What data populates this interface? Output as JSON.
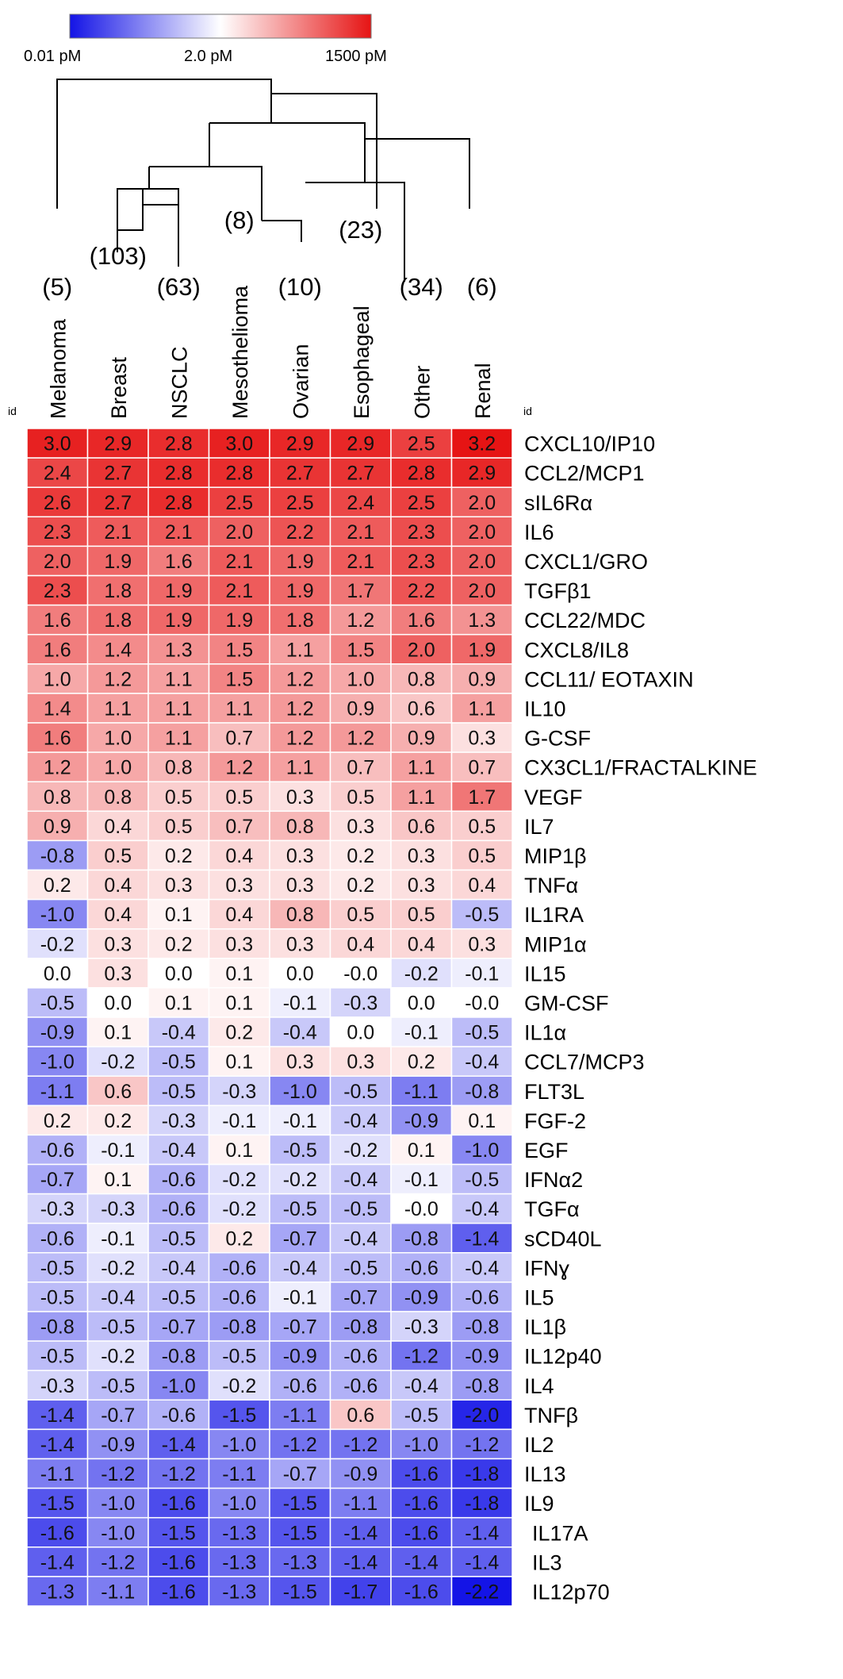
{
  "chart_data": {
    "type": "heatmap",
    "scale": {
      "min_label": "0.01 pM",
      "mid_label": "2.0 pM",
      "max_label": "1500 pM",
      "colors": [
        "#1414e6",
        "#ffffff",
        "#e61414"
      ],
      "value_range": [
        -2.2,
        3.2
      ]
    },
    "id_labels": [
      "id",
      "id"
    ],
    "columns": [
      {
        "name": "Melanoma",
        "count": "(5)"
      },
      {
        "name": "Breast",
        "count": "(103)"
      },
      {
        "name": "NSCLC",
        "count": "(63)"
      },
      {
        "name": "Mesothelioma",
        "count": "(8)"
      },
      {
        "name": "Ovarian",
        "count": "(10)"
      },
      {
        "name": "Esophageal",
        "count": "(23)"
      },
      {
        "name": "Other",
        "count": "(34)"
      },
      {
        "name": "Renal",
        "count": "(6)"
      }
    ],
    "rows": [
      {
        "name": "CXCL10/IP10",
        "values": [
          "3.0",
          "2.9",
          "2.8",
          "3.0",
          "2.9",
          "2.9",
          "2.5",
          "3.2"
        ]
      },
      {
        "name": "CCL2/MCP1",
        "values": [
          "2.4",
          "2.7",
          "2.8",
          "2.8",
          "2.7",
          "2.7",
          "2.8",
          "2.9"
        ]
      },
      {
        "name": "sIL6Rα",
        "values": [
          "2.6",
          "2.7",
          "2.8",
          "2.5",
          "2.5",
          "2.4",
          "2.5",
          "2.0"
        ]
      },
      {
        "name": "IL6",
        "values": [
          "2.3",
          "2.1",
          "2.1",
          "2.0",
          "2.2",
          "2.1",
          "2.3",
          "2.0"
        ]
      },
      {
        "name": "CXCL1/GRO",
        "values": [
          "2.0",
          "1.9",
          "1.6",
          "2.1",
          "1.9",
          "2.1",
          "2.3",
          "2.0"
        ]
      },
      {
        "name": "TGFβ1",
        "values": [
          "2.3",
          "1.8",
          "1.9",
          "2.1",
          "1.9",
          "1.7",
          "2.2",
          "2.0"
        ]
      },
      {
        "name": "CCL22/MDC",
        "values": [
          "1.6",
          "1.8",
          "1.9",
          "1.9",
          "1.8",
          "1.2",
          "1.6",
          "1.3"
        ]
      },
      {
        "name": "CXCL8/IL8",
        "values": [
          "1.6",
          "1.4",
          "1.3",
          "1.5",
          "1.1",
          "1.5",
          "2.0",
          "1.9"
        ]
      },
      {
        "name": "CCL11/ EOTAXIN",
        "values": [
          "1.0",
          "1.2",
          "1.1",
          "1.5",
          "1.2",
          "1.0",
          "0.8",
          "0.9"
        ]
      },
      {
        "name": "IL10",
        "values": [
          "1.4",
          "1.1",
          "1.1",
          "1.1",
          "1.2",
          "0.9",
          "0.6",
          "1.1"
        ]
      },
      {
        "name": "G-CSF",
        "values": [
          "1.6",
          "1.0",
          "1.1",
          "0.7",
          "1.2",
          "1.2",
          "0.9",
          "0.3"
        ]
      },
      {
        "name": "CX3CL1/FRACTALKINE",
        "values": [
          "1.2",
          "1.0",
          "0.8",
          "1.2",
          "1.1",
          "0.7",
          "1.1",
          "0.7"
        ]
      },
      {
        "name": "VEGF",
        "values": [
          "0.8",
          "0.8",
          "0.5",
          "0.5",
          "0.3",
          "0.5",
          "1.1",
          "1.7"
        ]
      },
      {
        "name": "IL7",
        "values": [
          "0.9",
          "0.4",
          "0.5",
          "0.7",
          "0.8",
          "0.3",
          "0.6",
          "0.5"
        ]
      },
      {
        "name": "MIP1β",
        "values": [
          "-0.8",
          "0.5",
          "0.2",
          "0.4",
          "0.3",
          "0.2",
          "0.3",
          "0.5"
        ]
      },
      {
        "name": "TNFα",
        "values": [
          "0.2",
          "0.4",
          "0.3",
          "0.3",
          "0.3",
          "0.2",
          "0.3",
          "0.4"
        ]
      },
      {
        "name": "IL1RA",
        "values": [
          "-1.0",
          "0.4",
          "0.1",
          "0.4",
          "0.8",
          "0.5",
          "0.5",
          "-0.5"
        ]
      },
      {
        "name": "MIP1α",
        "values": [
          "-0.2",
          "0.3",
          "0.2",
          "0.3",
          "0.3",
          "0.4",
          "0.4",
          "0.3"
        ]
      },
      {
        "name": "IL15",
        "values": [
          "0.0",
          "0.3",
          "0.0",
          "0.1",
          "0.0",
          "-0.0",
          "-0.2",
          "-0.1"
        ]
      },
      {
        "name": "GM-CSF",
        "values": [
          "-0.5",
          "0.0",
          "0.1",
          "0.1",
          "-0.1",
          "-0.3",
          "0.0",
          "-0.0"
        ]
      },
      {
        "name": "IL1α",
        "values": [
          "-0.9",
          "0.1",
          "-0.4",
          "0.2",
          "-0.4",
          "0.0",
          "-0.1",
          "-0.5"
        ]
      },
      {
        "name": "CCL7/MCP3",
        "values": [
          "-1.0",
          "-0.2",
          "-0.5",
          "0.1",
          "0.3",
          "0.3",
          "0.2",
          "-0.4"
        ]
      },
      {
        "name": "FLT3L",
        "values": [
          "-1.1",
          "0.6",
          "-0.5",
          "-0.3",
          "-1.0",
          "-0.5",
          "-1.1",
          "-0.8"
        ]
      },
      {
        "name": "FGF-2",
        "values": [
          "0.2",
          "0.2",
          "-0.3",
          "-0.1",
          "-0.1",
          "-0.4",
          "-0.9",
          "0.1"
        ]
      },
      {
        "name": "EGF",
        "values": [
          "-0.6",
          "-0.1",
          "-0.4",
          "0.1",
          "-0.5",
          "-0.2",
          "0.1",
          "-1.0"
        ]
      },
      {
        "name": "IFNα2",
        "values": [
          "-0.7",
          "0.1",
          "-0.6",
          "-0.2",
          "-0.2",
          "-0.4",
          "-0.1",
          "-0.5"
        ]
      },
      {
        "name": "TGFα",
        "values": [
          "-0.3",
          "-0.3",
          "-0.6",
          "-0.2",
          "-0.5",
          "-0.5",
          "-0.0",
          "-0.4"
        ]
      },
      {
        "name": "sCD40L",
        "values": [
          "-0.6",
          "-0.1",
          "-0.5",
          "0.2",
          "-0.7",
          "-0.4",
          "-0.8",
          "-1.4"
        ]
      },
      {
        "name": "IFNɣ",
        "values": [
          "-0.5",
          "-0.2",
          "-0.4",
          "-0.6",
          "-0.4",
          "-0.5",
          "-0.6",
          "-0.4"
        ]
      },
      {
        "name": "IL5",
        "values": [
          "-0.5",
          "-0.4",
          "-0.5",
          "-0.6",
          "-0.1",
          "-0.7",
          "-0.9",
          "-0.6"
        ]
      },
      {
        "name": "IL1β",
        "values": [
          "-0.8",
          "-0.5",
          "-0.7",
          "-0.8",
          "-0.7",
          "-0.8",
          "-0.3",
          "-0.8"
        ]
      },
      {
        "name": "IL12p40",
        "values": [
          "-0.5",
          "-0.2",
          "-0.8",
          "-0.5",
          "-0.9",
          "-0.6",
          "-1.2",
          "-0.9"
        ]
      },
      {
        "name": "IL4",
        "values": [
          "-0.3",
          "-0.5",
          "-1.0",
          "-0.2",
          "-0.6",
          "-0.6",
          "-0.4",
          "-0.8"
        ]
      },
      {
        "name": "TNFβ",
        "values": [
          "-1.4",
          "-0.7",
          "-0.6",
          "-1.5",
          "-1.1",
          "0.6",
          "-0.5",
          "-2.0"
        ]
      },
      {
        "name": "IL2",
        "values": [
          "-1.4",
          "-0.9",
          "-1.4",
          "-1.0",
          "-1.2",
          "-1.2",
          "-1.0",
          "-1.2"
        ]
      },
      {
        "name": "IL13",
        "values": [
          "-1.1",
          "-1.2",
          "-1.2",
          "-1.1",
          "-0.7",
          "-0.9",
          "-1.6",
          "-1.8"
        ]
      },
      {
        "name": "IL9",
        "values": [
          "-1.5",
          "-1.0",
          "-1.6",
          "-1.0",
          "-1.5",
          "-1.1",
          "-1.6",
          "-1.8"
        ]
      },
      {
        "name": "IL17A",
        "values": [
          "-1.6",
          "-1.0",
          "-1.5",
          "-1.3",
          "-1.5",
          "-1.4",
          "-1.6",
          "-1.4"
        ]
      },
      {
        "name": "IL3",
        "values": [
          "-1.4",
          "-1.2",
          "-1.6",
          "-1.3",
          "-1.3",
          "-1.4",
          "-1.4",
          "-1.4"
        ]
      },
      {
        "name": "IL12p70",
        "values": [
          "-1.3",
          "-1.1",
          "-1.6",
          "-1.3",
          "-1.5",
          "-1.7",
          "-1.6",
          "-2.2"
        ]
      }
    ]
  }
}
